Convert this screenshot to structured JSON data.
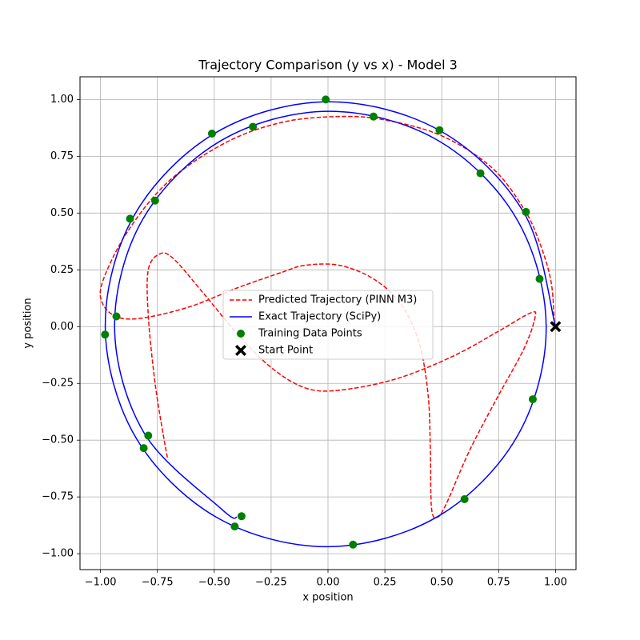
{
  "chart_data": {
    "type": "line",
    "title": "Trajectory Comparison (y vs x) - Model 3",
    "xlabel": "x position",
    "ylabel": "y position",
    "xlim": [
      -1.09,
      1.09
    ],
    "ylim": [
      -1.07,
      1.1
    ],
    "xticks": [
      {
        "value": -1,
        "label": "−1.00"
      },
      {
        "value": -0.75,
        "label": "−0.75"
      },
      {
        "value": -0.5,
        "label": "−0.50"
      },
      {
        "value": -0.25,
        "label": "−0.25"
      },
      {
        "value": 0,
        "label": "0.00"
      },
      {
        "value": 0.25,
        "label": "0.25"
      },
      {
        "value": 0.5,
        "label": "0.50"
      },
      {
        "value": 0.75,
        "label": "0.75"
      },
      {
        "value": 1,
        "label": "1.00"
      }
    ],
    "yticks": [
      {
        "value": -1,
        "label": "−1.00"
      },
      {
        "value": -0.75,
        "label": "−0.75"
      },
      {
        "value": -0.5,
        "label": "−0.50"
      },
      {
        "value": -0.25,
        "label": "−0.25"
      },
      {
        "value": 0,
        "label": "0.00"
      },
      {
        "value": 0.25,
        "label": "0.25"
      },
      {
        "value": 0.5,
        "label": "0.50"
      },
      {
        "value": 0.75,
        "label": "0.75"
      },
      {
        "value": 1,
        "label": "1.00"
      }
    ],
    "grid": true,
    "legend": "center",
    "series": [
      {
        "name": "Predicted Trajectory (PINN M3)",
        "color": "#ff0000",
        "style": "dashed",
        "x": [
          0.995,
          0.98,
          0.93,
          0.86,
          0.72,
          0.5,
          0.25,
          0.05,
          -0.2,
          -0.45,
          -0.7,
          -0.88,
          -0.99,
          -0.99,
          -0.92,
          -0.8,
          -0.6,
          -0.4,
          -0.2,
          -0.1,
          0.05,
          0.2,
          0.32,
          0.4,
          0.44,
          0.45,
          0.455,
          0.48,
          0.52,
          0.62,
          0.74,
          0.86,
          0.91,
          0.89,
          0.75,
          0.55,
          0.3,
          0.05,
          -0.1,
          -0.25,
          -0.4,
          -0.55,
          -0.68,
          -0.74,
          -0.79,
          -0.79,
          -0.76,
          -0.72,
          -0.705
        ],
        "values": [
          0.02,
          0.2,
          0.37,
          0.52,
          0.7,
          0.84,
          0.91,
          0.925,
          0.9,
          0.81,
          0.64,
          0.42,
          0.2,
          0.1,
          0.04,
          0.04,
          0.09,
          0.17,
          0.24,
          0.27,
          0.27,
          0.21,
          0.1,
          -0.07,
          -0.3,
          -0.55,
          -0.8,
          -0.84,
          -0.78,
          -0.55,
          -0.32,
          -0.1,
          0.04,
          0.06,
          -0.02,
          -0.13,
          -0.23,
          -0.28,
          -0.27,
          -0.18,
          -0.03,
          0.15,
          0.3,
          0.32,
          0.25,
          0.05,
          -0.25,
          -0.5,
          -0.58
        ]
      },
      {
        "name": "Exact Trajectory (SciPy)",
        "color": "#0000ff",
        "style": "solid",
        "x": [
          1,
          0.863,
          0.497,
          0,
          -0.493,
          -0.851,
          -0.979,
          -0.845,
          -0.486,
          0,
          0.483,
          0.833,
          0.959,
          0.827,
          0.476,
          0,
          -0.472,
          -0.815,
          -0.938,
          -0.809,
          -0.465,
          -0.4
        ],
        "values": [
          0,
          0.498,
          0.86,
          0.99,
          0.854,
          0.491,
          0,
          -0.488,
          -0.842,
          -0.969,
          -0.836,
          -0.481,
          0,
          0.478,
          0.824,
          0.948,
          0.818,
          0.471,
          0,
          -0.467,
          -0.806,
          -0.84
        ]
      },
      {
        "name": "Training Data Points",
        "color": "#008000",
        "style": "marker",
        "x": [
          -0.01,
          0.2,
          0.49,
          0.67,
          0.87,
          0.93,
          -0.51,
          -0.33,
          -0.76,
          -0.87,
          -0.93,
          -0.98,
          -0.79,
          -0.81,
          -0.38,
          -0.41,
          0.11,
          0.6,
          0.9
        ],
        "values": [
          1.0,
          0.925,
          0.865,
          0.675,
          0.505,
          0.21,
          0.85,
          0.88,
          0.555,
          0.475,
          0.045,
          -0.035,
          -0.48,
          -0.535,
          -0.835,
          -0.88,
          -0.96,
          -0.76,
          -0.32
        ]
      },
      {
        "name": "Start Point",
        "color": "#000000",
        "style": "cross",
        "x": [
          1
        ],
        "values": [
          0
        ]
      }
    ]
  }
}
